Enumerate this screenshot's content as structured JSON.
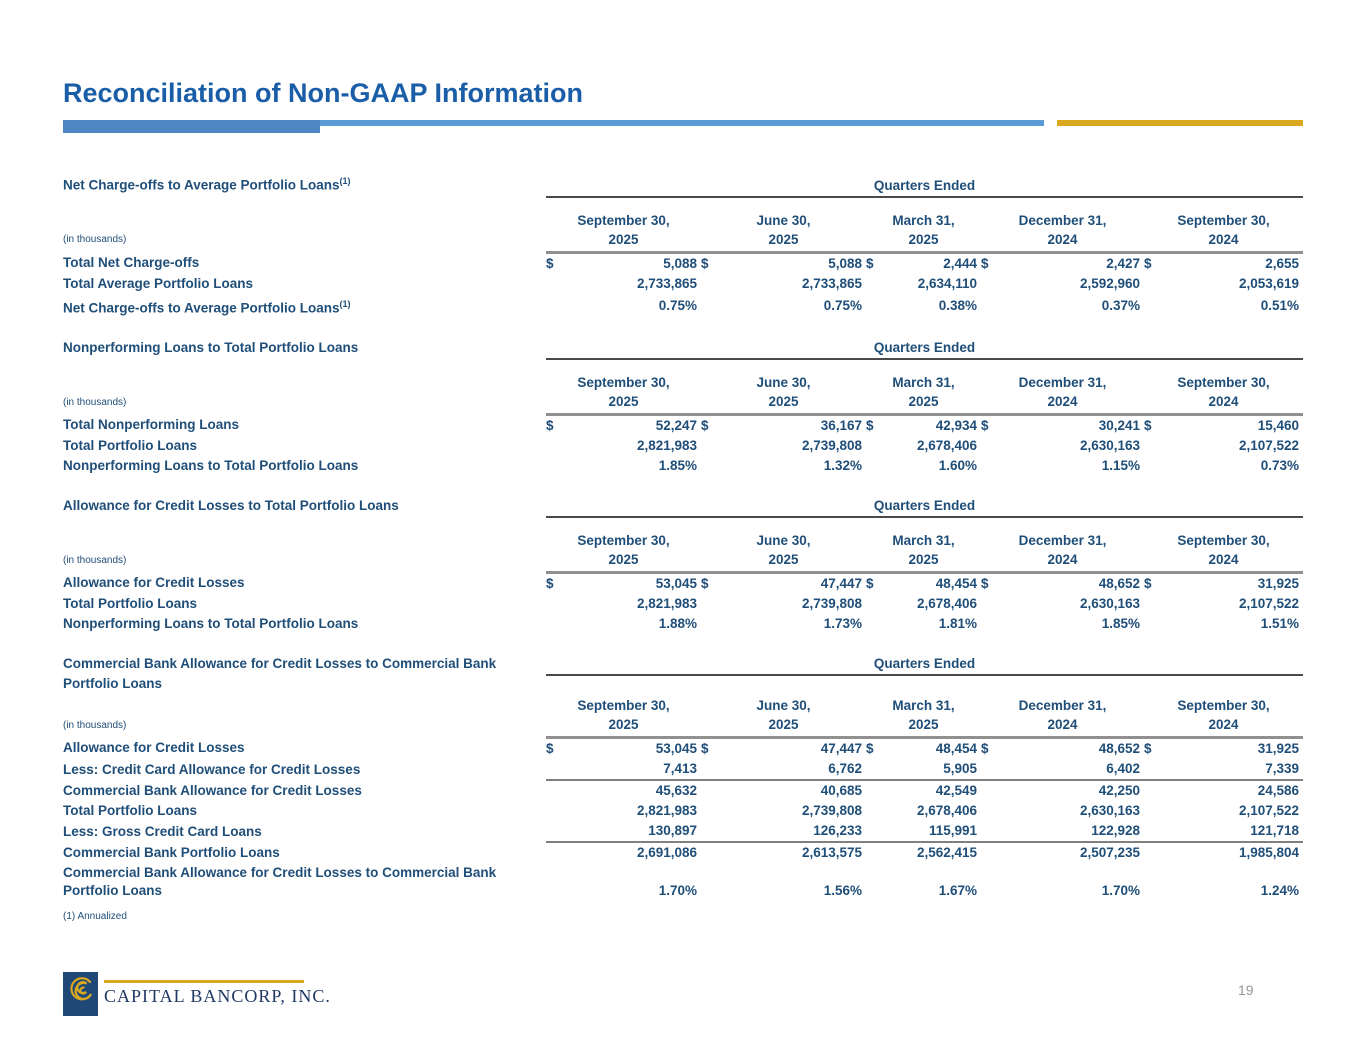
{
  "title": "Reconciliation of Non-GAAP Information",
  "colors": {
    "accent_blue": "#4E86C4",
    "light_blue": "#5B9BD5",
    "gold": "#D9A81F",
    "navy_text": "#1F4E79"
  },
  "columns": {
    "group_label": "Quarters Ended",
    "headers": [
      {
        "line1": "September 30,",
        "line2": "2025"
      },
      {
        "line1": "June 30,",
        "line2": "2025"
      },
      {
        "line1": "March 31,",
        "line2": "2025"
      },
      {
        "line1": "December 31,",
        "line2": "2024"
      },
      {
        "line1": "September 30,",
        "line2": "2024"
      }
    ]
  },
  "tables": [
    {
      "title": "Net Charge-offs to Average Portfolio Loans",
      "title_sup": "(1)",
      "unit_note": "(in thousands)",
      "rows": [
        {
          "label": "Total Net Charge-offs",
          "dollar": true,
          "values": [
            "5,088",
            "5,088",
            "2,444",
            "2,427",
            "2,655"
          ]
        },
        {
          "label": "Total Average Portfolio Loans",
          "values": [
            "2,733,865",
            "2,733,865",
            "2,634,110",
            "2,592,960",
            "2,053,619"
          ]
        },
        {
          "label": "Net Charge-offs to Average Portfolio Loans",
          "label_sup": "(1)",
          "values": [
            "0.75%",
            "0.75%",
            "0.38%",
            "0.37%",
            "0.51%"
          ]
        }
      ]
    },
    {
      "title": "Nonperforming Loans to Total Portfolio Loans",
      "unit_note": "(in thousands)",
      "rows": [
        {
          "label": "Total Nonperforming Loans",
          "dollar": true,
          "values": [
            "52,247",
            "36,167",
            "42,934",
            "30,241",
            "15,460"
          ]
        },
        {
          "label": "Total Portfolio Loans",
          "values": [
            "2,821,983",
            "2,739,808",
            "2,678,406",
            "2,630,163",
            "2,107,522"
          ]
        },
        {
          "label": "Nonperforming Loans to Total Portfolio Loans",
          "values": [
            "1.85%",
            "1.32%",
            "1.60%",
            "1.15%",
            "0.73%"
          ]
        }
      ]
    },
    {
      "title": "Allowance for Credit Losses to Total Portfolio Loans",
      "unit_note": "(in thousands)",
      "rows": [
        {
          "label": "Allowance for Credit Losses",
          "dollar": true,
          "values": [
            "53,045",
            "47,447",
            "48,454",
            "48,652",
            "31,925"
          ]
        },
        {
          "label": "Total Portfolio Loans",
          "values": [
            "2,821,983",
            "2,739,808",
            "2,678,406",
            "2,630,163",
            "2,107,522"
          ]
        },
        {
          "label": "Nonperforming Loans to Total Portfolio Loans",
          "values": [
            "1.88%",
            "1.73%",
            "1.81%",
            "1.85%",
            "1.51%"
          ]
        }
      ]
    },
    {
      "title": "Commercial Bank Allowance for Credit Losses to Commercial Bank Portfolio Loans",
      "unit_note": "(in thousands)",
      "compact_header": true,
      "rows": [
        {
          "label": "Allowance for Credit Losses",
          "dollar": true,
          "values": [
            "53,045",
            "47,447",
            "48,454",
            "48,652",
            "31,925"
          ]
        },
        {
          "label": "Less: Credit Card Allowance for Credit Losses",
          "rule_below": true,
          "values": [
            "7,413",
            "6,762",
            "5,905",
            "6,402",
            "7,339"
          ]
        },
        {
          "label": "Commercial Bank Allowance for Credit Losses",
          "values": [
            "45,632",
            "40,685",
            "42,549",
            "42,250",
            "24,586"
          ]
        },
        {
          "label": "Total Portfolio Loans",
          "values": [
            "2,821,983",
            "2,739,808",
            "2,678,406",
            "2,630,163",
            "2,107,522"
          ]
        },
        {
          "label": "Less: Gross Credit Card Loans",
          "rule_below": true,
          "values": [
            "130,897",
            "126,233",
            "115,991",
            "122,928",
            "121,718"
          ]
        },
        {
          "label": "Commercial Bank Portfolio Loans",
          "values": [
            "2,691,086",
            "2,613,575",
            "2,562,415",
            "2,507,235",
            "1,985,804"
          ]
        },
        {
          "label": "Commercial Bank Allowance for Credit Losses to Commercial Bank Portfolio Loans",
          "tall": true,
          "values": [
            "1.70%",
            "1.56%",
            "1.67%",
            "1.70%",
            "1.24%"
          ]
        }
      ]
    }
  ],
  "footnote": "(1) Annualized",
  "footer": {
    "logo_text": "CAPITAL BANCORP, INC.",
    "page_number": "19"
  }
}
